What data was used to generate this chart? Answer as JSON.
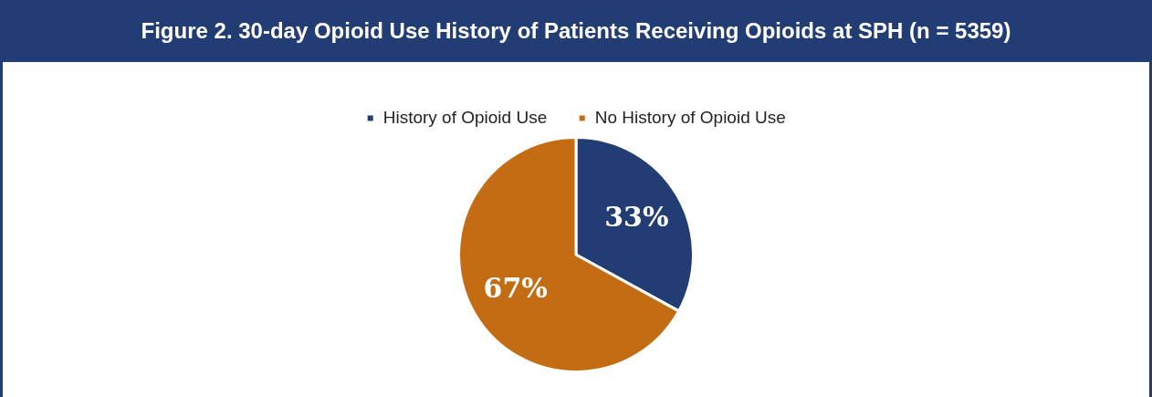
{
  "chart_data": {
    "type": "pie",
    "title": "Figure 2. 30-day Opioid Use History of Patients Receiving Opioids at SPH (n = 5359)",
    "categories": [
      "History of Opioid Use",
      "No History of Opioid Use"
    ],
    "values": [
      33,
      67
    ],
    "colors": [
      "#223c74",
      "#c46c14"
    ],
    "value_labels": [
      "33%",
      "67%"
    ],
    "legend": "top"
  }
}
